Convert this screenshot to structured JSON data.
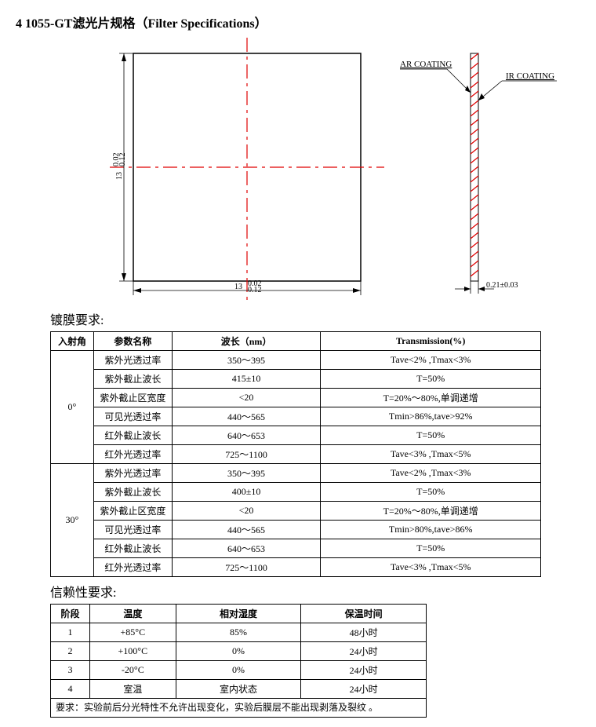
{
  "title": "4 1055-GT滤光片规格（Filter Specifications）",
  "diagram": {
    "width_label": "13",
    "width_tol_top": "0.02",
    "width_tol_bot": "0.12",
    "height_label": "13",
    "height_tol_top": "0.02",
    "height_tol_bot": "0.12",
    "thickness_label": "0.21±0.03",
    "ar_label": "AR COATING",
    "ir_label": "IR COATING",
    "colors": {
      "centerline": "#e00000",
      "hatch": "#e00000",
      "line": "#000000"
    }
  },
  "coating": {
    "header": "镀膜要求:",
    "columns": [
      "入射角",
      "参数名称",
      "波长（nm）",
      "Transmission(%)"
    ],
    "groups": [
      {
        "angle": "0°",
        "rows": [
          [
            "紫外光透过率",
            "350～395",
            "Tave<2% ,Tmax<3%"
          ],
          [
            "紫外截止波长",
            "415±10",
            "T=50%"
          ],
          [
            "紫外截止区宽度",
            "<20",
            "T=20%～80%,单调递增"
          ],
          [
            "可见光透过率",
            "440～565",
            "Tmin>86%,tave>92%"
          ],
          [
            "红外截止波长",
            "640～653",
            "T=50%"
          ],
          [
            "红外光透过率",
            "725～1100",
            "Tave<3% ,Tmax<5%"
          ]
        ]
      },
      {
        "angle": "30°",
        "rows": [
          [
            "紫外光透过率",
            "350～395",
            "Tave<2% ,Tmax<3%"
          ],
          [
            "紫外截止波长",
            "400±10",
            "T=50%"
          ],
          [
            "紫外截止区宽度",
            "<20",
            "T=20%～80%,单调递增"
          ],
          [
            "可见光透过率",
            "440～565",
            "Tmin>80%,tave>86%"
          ],
          [
            "红外截止波长",
            "640～653",
            "T=50%"
          ],
          [
            "红外光透过率",
            "725～1100",
            "Tave<3% ,Tmax<5%"
          ]
        ]
      }
    ]
  },
  "reliability": {
    "header": "信赖性要求:",
    "columns": [
      "阶段",
      "温度",
      "相对湿度",
      "保温时间"
    ],
    "rows": [
      [
        "1",
        "+85°C",
        "85%",
        "48小时"
      ],
      [
        "2",
        "+100°C",
        "0%",
        "24小时"
      ],
      [
        "3",
        "-20°C",
        "0%",
        "24小时"
      ],
      [
        "4",
        "室温",
        "室内状态",
        "24小时"
      ]
    ],
    "note": "要求：实验前后分光特性不允许出现变化，实验后膜层不能出现剥落及裂纹 。"
  }
}
